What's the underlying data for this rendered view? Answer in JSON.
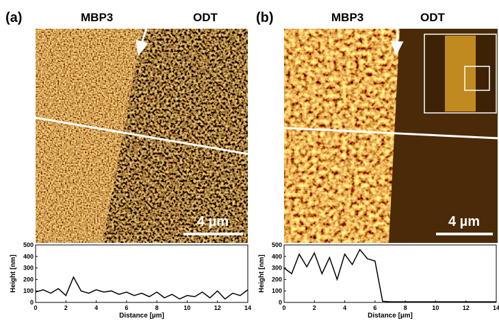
{
  "panels": [
    {
      "label": "(a)",
      "left_label": "MBP3",
      "right_label": "ODT",
      "scale_bar": "4 µm"
    },
    {
      "label": "(b)",
      "left_label": "MBP3",
      "right_label": "ODT",
      "scale_bar": "4 µm"
    }
  ],
  "chart_data": [
    {
      "type": "line",
      "x_label": "Distance [µm]",
      "y_label": "Height [nm]",
      "color": "#000000",
      "x": [
        0,
        0.5,
        1,
        1.5,
        2,
        2.5,
        3,
        3.5,
        4,
        4.5,
        5,
        5.5,
        6,
        6.5,
        7,
        7.5,
        8,
        8.5,
        9,
        9.5,
        10,
        10.5,
        11,
        11.5,
        12,
        12.5,
        13,
        13.5,
        14
      ],
      "values": [
        90,
        110,
        80,
        120,
        60,
        220,
        100,
        80,
        110,
        90,
        100,
        70,
        90,
        60,
        80,
        50,
        90,
        40,
        70,
        30,
        60,
        50,
        90,
        40,
        100,
        30,
        80,
        60,
        110
      ],
      "xlim": [
        0,
        14
      ],
      "ylim": [
        0,
        500
      ],
      "xticks": [
        0,
        2,
        4,
        6,
        8,
        10,
        12,
        14
      ],
      "yticks": [
        0,
        100,
        200,
        300,
        400,
        500
      ]
    },
    {
      "type": "line",
      "x_label": "Distance [µm]",
      "y_label": "Height [nm]",
      "color": "#000000",
      "x": [
        0,
        0.5,
        1,
        1.5,
        2,
        2.5,
        3,
        3.5,
        4,
        4.5,
        5,
        5.5,
        6,
        6.5,
        7,
        7.5,
        8,
        8.5,
        9,
        9.5,
        10,
        10.5,
        11,
        11.5,
        12,
        12.5,
        13,
        13.5,
        14
      ],
      "values": [
        300,
        250,
        420,
        310,
        430,
        250,
        390,
        200,
        420,
        330,
        460,
        380,
        360,
        10,
        5,
        5,
        5,
        5,
        5,
        5,
        5,
        5,
        5,
        5,
        5,
        5,
        5,
        5,
        5
      ],
      "xlim": [
        0,
        14
      ],
      "ylim": [
        0,
        500
      ],
      "xticks": [
        0,
        2,
        4,
        6,
        8,
        10,
        12,
        14
      ],
      "yticks": [
        0,
        100,
        200,
        300,
        400,
        500
      ]
    }
  ]
}
